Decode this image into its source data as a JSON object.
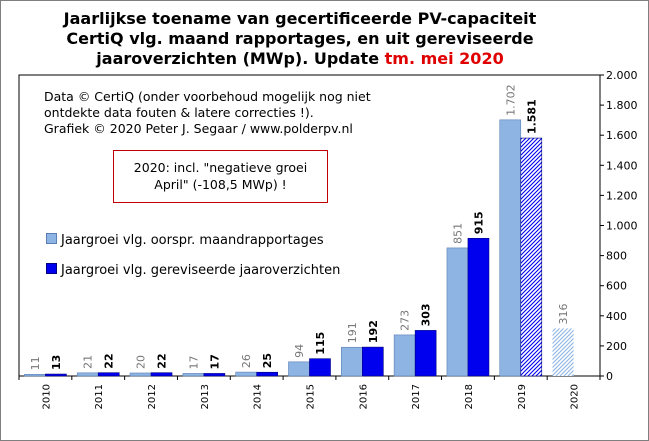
{
  "title": {
    "line1": "Jaarlijkse  toename van gecertificeerde PV-capaciteit",
    "line2": "CertiQ vlg. maand rapportages, en uit gereviseerde",
    "line3_prefix": "jaaroverzichten (MWp). Update ",
    "line3_highlight": "tm. mei 2020"
  },
  "credit": {
    "line1": "Data © CertiQ (onder voorbehoud mogelijk  nog niet",
    "line2": "ontdekte data fouten & latere correcties !).",
    "line3": "Grafiek  © 2020 Peter J. Segaar / www.polderpv.nl"
  },
  "note": {
    "line1": "2020: incl. \"negatieve groei",
    "line2": "April\"  (-108,5 MWp) !"
  },
  "colors": {
    "series1": "#8db4e2",
    "series1_border": "#5b7fb5",
    "series2": "#0000ee",
    "series2_border": "#000080",
    "title_highlight": "#e00000",
    "note_border": "#c00000",
    "plot_border": "#000000"
  },
  "chart_data": {
    "type": "bar",
    "categories": [
      "2010",
      "2011",
      "2012",
      "2013",
      "2014",
      "2015",
      "2016",
      "2017",
      "2018",
      "2019",
      "2020"
    ],
    "series": [
      {
        "name": "Jaargroei vlg. oorspr. maandrapportages",
        "values": [
          11,
          21,
          20,
          17,
          26,
          94,
          191,
          273,
          851,
          1702,
          316
        ],
        "labels": [
          "11",
          "21",
          "20",
          "17",
          "26",
          "94",
          "191",
          "273",
          "851",
          "1.702",
          "316"
        ],
        "hatched": [
          false,
          false,
          false,
          false,
          false,
          false,
          false,
          false,
          false,
          false,
          true
        ]
      },
      {
        "name": "Jaargroei vlg. gereviseerde jaaroverzichten",
        "values": [
          13,
          22,
          22,
          17,
          25,
          115,
          192,
          303,
          915,
          1581,
          null
        ],
        "labels": [
          "13",
          "22",
          "22",
          "17",
          "25",
          "115",
          "192",
          "303",
          "915",
          "1.581",
          ""
        ],
        "hatched": [
          false,
          false,
          false,
          false,
          false,
          false,
          false,
          false,
          false,
          true,
          false
        ]
      }
    ],
    "ylim": [
      0,
      2000
    ],
    "yticks": [
      0,
      200,
      400,
      600,
      800,
      1000,
      1200,
      1400,
      1600,
      1800,
      2000
    ],
    "ytick_labels": [
      "0",
      "200",
      "400",
      "600",
      "800",
      "1.000",
      "1.200",
      "1.400",
      "1.600",
      "1.800",
      "2.000"
    ],
    "y_axis_side": "right",
    "grid": false,
    "legend_placement": "left-middle"
  }
}
